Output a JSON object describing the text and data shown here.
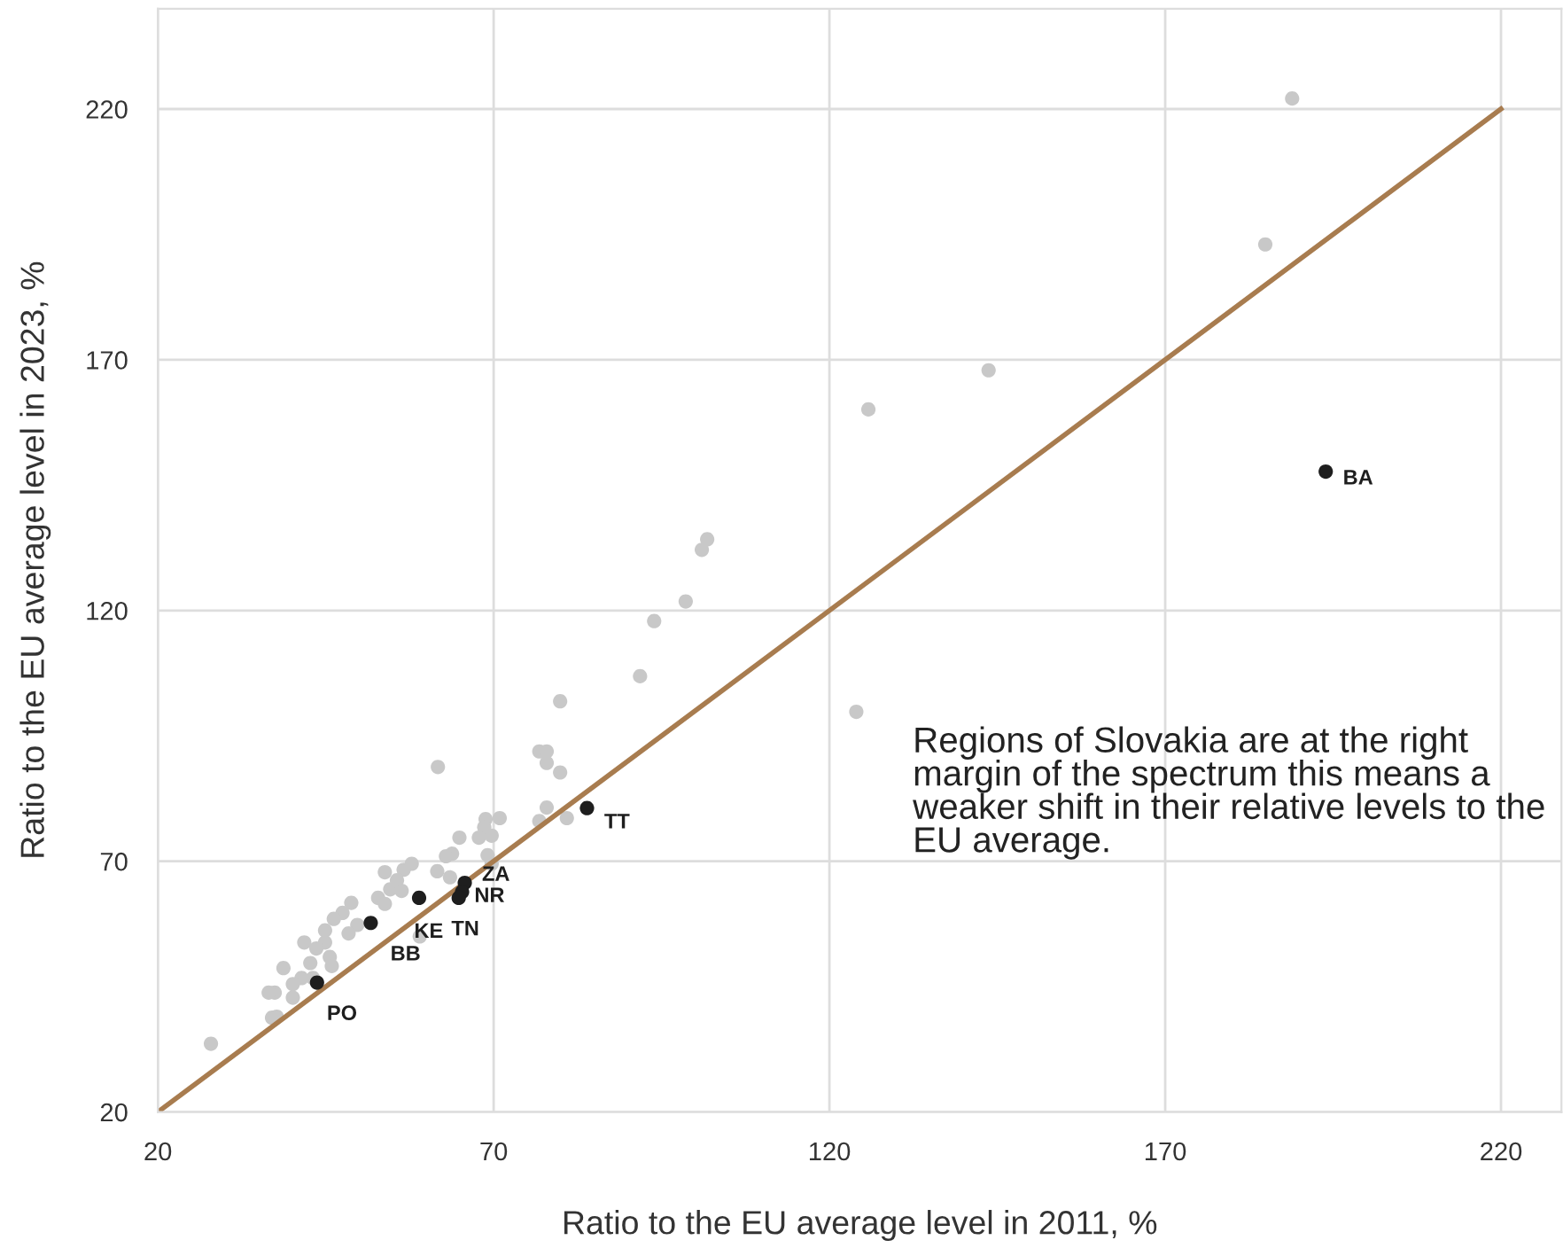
{
  "chart_data": {
    "type": "scatter",
    "xlabel": "Ratio to the EU average level in 2011, %",
    "ylabel": "Ratio to the EU average level in 2023, %",
    "xlim": [
      20,
      229
    ],
    "ylim": [
      20,
      240
    ],
    "xticks": [
      20,
      70,
      120,
      170,
      220
    ],
    "yticks": [
      20,
      70,
      120,
      170,
      220
    ],
    "grid": true,
    "marker": "circle",
    "annotations": [
      "Regions of Slovakia are at the right margin of the spectrum this means a weaker shift in their relative levels to the EU average."
    ],
    "series": [
      {
        "color": "#c8c8c8",
        "x": [
          188.9,
          184.9,
          143.7,
          125.8,
          124.0,
          101.8,
          101.0,
          98.6,
          93.9,
          91.8,
          79.9,
          61.7,
          76.8,
          77.9,
          77.9,
          79.9,
          77.9,
          76.8,
          80.9,
          27.9,
          68.8,
          70.9,
          68.6,
          69.7,
          67.8,
          64.9,
          63.8,
          62.9,
          61.6,
          63.5,
          69.1,
          69.7,
          57.8,
          56.6,
          53.8,
          55.6,
          54.6,
          56.3,
          52.8,
          53.8,
          48.8,
          47.5,
          46.2,
          44.9,
          49.7,
          48.4,
          44.9,
          41.8,
          43.6,
          45.6,
          42.7,
          45.9,
          38.7,
          41.4,
          40.1,
          37.4,
          36.5,
          40.1,
          37.0,
          37.7,
          59.0,
          43.1
        ],
        "values": [
          222.1,
          193.0,
          167.9,
          160.1,
          99.8,
          134.2,
          132.1,
          121.8,
          117.9,
          106.9,
          101.9,
          88.8,
          91.9,
          91.9,
          89.6,
          87.7,
          80.7,
          78.0,
          78.6,
          33.6,
          78.4,
          78.6,
          76.8,
          75.1,
          74.7,
          74.7,
          71.5,
          71.0,
          68.0,
          66.8,
          71.2,
          69.5,
          69.5,
          68.3,
          67.8,
          66.2,
          64.4,
          64.1,
          62.7,
          61.5,
          61.7,
          59.7,
          58.5,
          56.2,
          57.3,
          55.6,
          53.8,
          53.8,
          52.6,
          50.9,
          49.7,
          49.1,
          48.7,
          46.7,
          45.5,
          43.8,
          43.8,
          42.8,
          38.8,
          39.0,
          55.0,
          46.7
        ]
      },
      {
        "color": "#1e1e1e",
        "x": [
          193.9,
          83.9,
          65.7,
          65.3,
          64.8,
          58.9,
          51.7,
          43.7
        ],
        "values": [
          147.7,
          80.6,
          65.7,
          63.9,
          62.7,
          62.7,
          57.7,
          45.8
        ],
        "value_labels": [
          "BA",
          "TT",
          "ZA",
          "NR",
          "TN",
          "KE",
          "BB",
          "PO"
        ]
      },
      {
        "type": "line",
        "color": "#a87c4f",
        "x": [
          20,
          220
        ],
        "values": [
          20,
          220
        ],
        "marker": "none"
      }
    ]
  }
}
